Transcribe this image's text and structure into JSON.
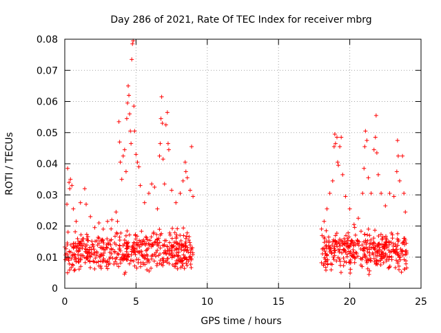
{
  "chart_data": {
    "type": "scatter",
    "title": "Day 286 of 2021, Rate Of TEC Index for receiver mbrg",
    "xlabel": "GPS time / hours",
    "ylabel": "ROTI / TECUs",
    "xlim": [
      0,
      25
    ],
    "ylim": [
      0,
      0.08
    ],
    "x_ticks": [
      0,
      5,
      10,
      15,
      20,
      25
    ],
    "x_tick_labels": [
      "0",
      "5",
      "10",
      "15",
      "20",
      "25"
    ],
    "y_ticks": [
      0,
      0.01,
      0.02,
      0.03,
      0.04,
      0.05,
      0.06,
      0.07,
      0.08
    ],
    "y_tick_labels": [
      "0",
      "0.01",
      "0.02",
      "0.03",
      "0.04",
      "0.05",
      "0.06",
      "0.07",
      "0.08"
    ],
    "grid": true,
    "marker": "+",
    "marker_color": "#ff0000",
    "series": [
      {
        "name": "ROTI",
        "color": "#ff0000",
        "points": [
          {
            "x": 0.15,
            "y": 0.027
          },
          {
            "x": 0.2,
            "y": 0.0385
          },
          {
            "x": 0.3,
            "y": 0.034
          },
          {
            "x": 0.35,
            "y": 0.032
          },
          {
            "x": 0.4,
            "y": 0.035
          },
          {
            "x": 0.5,
            "y": 0.033
          },
          {
            "x": 0.6,
            "y": 0.0255
          },
          {
            "x": 0.8,
            "y": 0.0215
          },
          {
            "x": 1.1,
            "y": 0.0275
          },
          {
            "x": 1.4,
            "y": 0.032
          },
          {
            "x": 1.5,
            "y": 0.027
          },
          {
            "x": 1.8,
            "y": 0.023
          },
          {
            "x": 2.1,
            "y": 0.0195
          },
          {
            "x": 2.4,
            "y": 0.021
          },
          {
            "x": 2.7,
            "y": 0.019
          },
          {
            "x": 3.0,
            "y": 0.0215
          },
          {
            "x": 3.3,
            "y": 0.022
          },
          {
            "x": 3.6,
            "y": 0.0245
          },
          {
            "x": 3.7,
            "y": 0.0215
          },
          {
            "x": 3.8,
            "y": 0.0535
          },
          {
            "x": 3.85,
            "y": 0.047
          },
          {
            "x": 3.9,
            "y": 0.0405
          },
          {
            "x": 4.0,
            "y": 0.035
          },
          {
            "x": 4.1,
            "y": 0.0425
          },
          {
            "x": 4.2,
            "y": 0.0445
          },
          {
            "x": 4.3,
            "y": 0.0375
          },
          {
            "x": 4.35,
            "y": 0.0545
          },
          {
            "x": 4.4,
            "y": 0.0595
          },
          {
            "x": 4.45,
            "y": 0.065
          },
          {
            "x": 4.5,
            "y": 0.062
          },
          {
            "x": 4.55,
            "y": 0.056
          },
          {
            "x": 4.6,
            "y": 0.0505
          },
          {
            "x": 4.65,
            "y": 0.0465
          },
          {
            "x": 4.7,
            "y": 0.0735
          },
          {
            "x": 4.75,
            "y": 0.0785
          },
          {
            "x": 4.8,
            "y": 0.0795
          },
          {
            "x": 4.85,
            "y": 0.0585
          },
          {
            "x": 4.9,
            "y": 0.0505
          },
          {
            "x": 5.0,
            "y": 0.043
          },
          {
            "x": 5.1,
            "y": 0.0405
          },
          {
            "x": 5.2,
            "y": 0.039
          },
          {
            "x": 5.3,
            "y": 0.033
          },
          {
            "x": 5.6,
            "y": 0.0275
          },
          {
            "x": 5.9,
            "y": 0.0305
          },
          {
            "x": 6.1,
            "y": 0.0335
          },
          {
            "x": 6.3,
            "y": 0.0325
          },
          {
            "x": 6.5,
            "y": 0.0255
          },
          {
            "x": 6.65,
            "y": 0.0425
          },
          {
            "x": 6.7,
            "y": 0.0465
          },
          {
            "x": 6.75,
            "y": 0.0545
          },
          {
            "x": 6.8,
            "y": 0.0615
          },
          {
            "x": 6.85,
            "y": 0.053
          },
          {
            "x": 6.9,
            "y": 0.0415
          },
          {
            "x": 7.0,
            "y": 0.0335
          },
          {
            "x": 7.1,
            "y": 0.0525
          },
          {
            "x": 7.2,
            "y": 0.0565
          },
          {
            "x": 7.25,
            "y": 0.0465
          },
          {
            "x": 7.3,
            "y": 0.0445
          },
          {
            "x": 7.5,
            "y": 0.0315
          },
          {
            "x": 7.8,
            "y": 0.0275
          },
          {
            "x": 8.1,
            "y": 0.0305
          },
          {
            "x": 8.3,
            "y": 0.0345
          },
          {
            "x": 8.45,
            "y": 0.0405
          },
          {
            "x": 8.5,
            "y": 0.0375
          },
          {
            "x": 8.6,
            "y": 0.0355
          },
          {
            "x": 8.8,
            "y": 0.0315
          },
          {
            "x": 8.9,
            "y": 0.0455
          },
          {
            "x": 9.0,
            "y": 0.0295
          },
          {
            "x": 18.2,
            "y": 0.0215
          },
          {
            "x": 18.4,
            "y": 0.0255
          },
          {
            "x": 18.6,
            "y": 0.0305
          },
          {
            "x": 18.8,
            "y": 0.0345
          },
          {
            "x": 18.9,
            "y": 0.0455
          },
          {
            "x": 18.95,
            "y": 0.0495
          },
          {
            "x": 19.0,
            "y": 0.0465
          },
          {
            "x": 19.1,
            "y": 0.0485
          },
          {
            "x": 19.15,
            "y": 0.0405
          },
          {
            "x": 19.2,
            "y": 0.0395
          },
          {
            "x": 19.3,
            "y": 0.0455
          },
          {
            "x": 19.4,
            "y": 0.0485
          },
          {
            "x": 19.5,
            "y": 0.0365
          },
          {
            "x": 19.7,
            "y": 0.0295
          },
          {
            "x": 20.0,
            "y": 0.0255
          },
          {
            "x": 20.3,
            "y": 0.0205
          },
          {
            "x": 20.6,
            "y": 0.0225
          },
          {
            "x": 20.9,
            "y": 0.0305
          },
          {
            "x": 21.0,
            "y": 0.0385
          },
          {
            "x": 21.05,
            "y": 0.0455
          },
          {
            "x": 21.1,
            "y": 0.0505
          },
          {
            "x": 21.2,
            "y": 0.0475
          },
          {
            "x": 21.3,
            "y": 0.0355
          },
          {
            "x": 21.5,
            "y": 0.0305
          },
          {
            "x": 21.7,
            "y": 0.0445
          },
          {
            "x": 21.8,
            "y": 0.0485
          },
          {
            "x": 21.85,
            "y": 0.0555
          },
          {
            "x": 21.9,
            "y": 0.0435
          },
          {
            "x": 22.0,
            "y": 0.0365
          },
          {
            "x": 22.2,
            "y": 0.0305
          },
          {
            "x": 22.5,
            "y": 0.0265
          },
          {
            "x": 22.8,
            "y": 0.0305
          },
          {
            "x": 23.1,
            "y": 0.0295
          },
          {
            "x": 23.3,
            "y": 0.0375
          },
          {
            "x": 23.35,
            "y": 0.0475
          },
          {
            "x": 23.4,
            "y": 0.0425
          },
          {
            "x": 23.5,
            "y": 0.0345
          },
          {
            "x": 23.7,
            "y": 0.0425
          },
          {
            "x": 23.8,
            "y": 0.0305
          },
          {
            "x": 23.9,
            "y": 0.0245
          }
        ],
        "dense_band": {
          "segments": [
            {
              "x_start": 0.0,
              "x_end": 9.0,
              "y_min": 0.003,
              "y_max": 0.021,
              "count": 520
            },
            {
              "x_start": 18.0,
              "x_end": 24.0,
              "y_min": 0.003,
              "y_max": 0.021,
              "count": 360
            }
          ]
        }
      }
    ]
  }
}
